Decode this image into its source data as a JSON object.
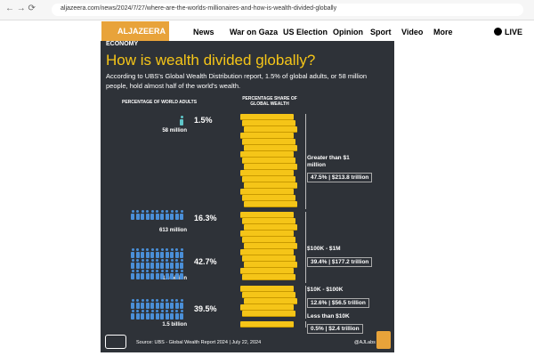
{
  "browser": {
    "url": "aljazeera.com/news/2024/7/27/where-are-the-worlds-millionaires-and-how-is-wealth-divided-globally"
  },
  "nav": {
    "logo": "ALJAZEERA",
    "items": [
      "News",
      "War on Gaza",
      "US Election",
      "Opinion",
      "Sport",
      "Video",
      "More"
    ],
    "live": "LIVE"
  },
  "infographic": {
    "section": "ECONOMY",
    "title": "How is wealth divided globally?",
    "subtitle": "According to UBS's Global Wealth Distribution report, 1.5% of global adults, or 58 million people, hold almost half of the world's wealth.",
    "left_header": "PERCENTAGE OF WORLD ADULTS",
    "right_header": "PERCENTAGE SHARE OF GLOBAL WEALTH",
    "adults": [
      {
        "percent": "1.5%",
        "count": "58 million"
      },
      {
        "percent": "16.3%",
        "count": "613 million"
      },
      {
        "percent": "42.7%",
        "count": "1.6 billion"
      },
      {
        "percent": "39.5%",
        "count": "1.5 billion"
      }
    ],
    "wealth": [
      {
        "band": "Greater than $1 million",
        "share": "47.5% | $213.8 trillion"
      },
      {
        "band": "$100K - $1M",
        "share": "39.4% | $177.2 trillion"
      },
      {
        "band": "$10K - $100K",
        "share": "12.6% | $56.5 trillion"
      },
      {
        "band": "Less than $10K",
        "share": "0.5% | $2.4 trillion"
      }
    ],
    "source": "Source: UBS - Global Wealth Report 2024 | July 22, 2024",
    "credit": "@AJLabs"
  }
}
